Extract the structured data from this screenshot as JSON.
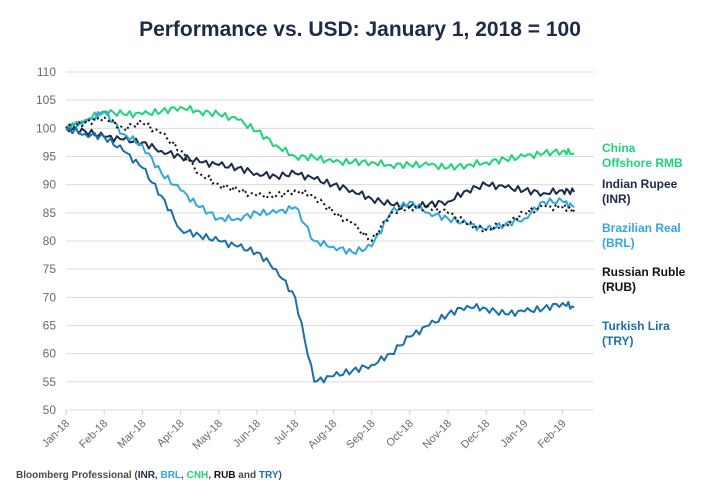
{
  "chart_data": {
    "type": "line",
    "title": "Performance vs. USD: January 1, 2018 = 100",
    "xlabel": "",
    "ylabel": "",
    "ylim": [
      50,
      110
    ],
    "yticks": [
      50,
      55,
      60,
      65,
      70,
      75,
      80,
      85,
      90,
      95,
      100,
      105,
      110
    ],
    "grid": true,
    "categories": [
      "Jan-18",
      "Feb-18",
      "Mar-18",
      "Apr-18",
      "May-18",
      "Jun-18",
      "Jul-18",
      "Aug-18",
      "Sep-18",
      "Oct-18",
      "Nov-18",
      "Dec-18",
      "Jan-19",
      "Feb-19"
    ],
    "x": [
      0,
      0.5,
      1,
      1.5,
      2,
      2.5,
      3,
      3.5,
      4,
      4.5,
      5,
      5.5,
      6,
      6.5,
      7,
      7.5,
      8,
      8.5,
      9,
      9.5,
      10,
      10.5,
      11,
      11.5,
      12,
      12.5,
      13,
      13.3
    ],
    "series": [
      {
        "name": "China Offshore RMB",
        "label": [
          "China",
          "Offshore RMB"
        ],
        "color": "#1fd37a",
        "dash": false,
        "values": [
          100,
          101.5,
          103,
          102.5,
          102.5,
          103,
          103.8,
          103,
          102.5,
          101.5,
          99.5,
          97,
          95,
          94.8,
          94,
          94,
          94,
          93.5,
          93.5,
          93.5,
          93,
          93.5,
          94,
          94.5,
          95,
          95.5,
          96,
          95.6
        ]
      },
      {
        "name": "Indian Rupee (INR)",
        "label": [
          "Indian Rupee",
          "(INR)"
        ],
        "color": "#1c2b47",
        "dash": false,
        "values": [
          100,
          99.5,
          98.5,
          98,
          97.5,
          96,
          95,
          94,
          93.5,
          93,
          92,
          91.5,
          92,
          91,
          90,
          89,
          87.5,
          86.5,
          86,
          86.5,
          87,
          89,
          90,
          89.5,
          89,
          88.5,
          89,
          88.7
        ]
      },
      {
        "name": "Brazilian Real (BRL)",
        "label": [
          "Brazilian Real",
          "(BRL)"
        ],
        "color": "#35a6dc",
        "dash": false,
        "values": [
          100,
          101,
          103,
          99,
          97,
          92,
          89,
          86,
          84,
          84,
          85,
          85,
          86,
          80,
          79,
          78,
          79,
          85,
          87,
          85,
          84,
          83,
          82,
          83,
          84,
          87,
          87,
          86
        ]
      },
      {
        "name": "Russian Ruble (RUB)",
        "label": [
          "Russian Ruble",
          "(RUB)"
        ],
        "color": "#111111",
        "dash": true,
        "values": [
          100,
          101,
          102,
          100,
          101,
          99,
          96,
          92,
          90,
          89,
          88,
          88,
          89,
          88,
          85,
          83,
          80,
          85,
          86,
          86,
          85,
          83,
          82,
          83,
          85,
          86,
          86,
          85.5
        ]
      },
      {
        "name": "Turkish Lira (TRY)",
        "label": [
          "Turkish Lira",
          "(TRY)"
        ],
        "color": "#1a6fad",
        "dash": false,
        "values": [
          100,
          99,
          98.5,
          96,
          93,
          88,
          82,
          81,
          80,
          79,
          78,
          75,
          70,
          55,
          56,
          57,
          58,
          60,
          63,
          65,
          67,
          68.5,
          68,
          67,
          67.5,
          68,
          69,
          68.2
        ]
      }
    ]
  },
  "source": {
    "prefix": "Bloomberg Professional (",
    "parts": [
      {
        "text": "INR",
        "color": "#1c2b47"
      },
      {
        "text": ", ",
        "color": "#4a4a4a"
      },
      {
        "text": "BRL",
        "color": "#35a6dc"
      },
      {
        "text": ", ",
        "color": "#4a4a4a"
      },
      {
        "text": "CNH",
        "color": "#1fd37a"
      },
      {
        "text": ", ",
        "color": "#4a4a4a"
      },
      {
        "text": "RUB",
        "color": "#111111"
      },
      {
        "text": " and ",
        "color": "#4a4a4a"
      },
      {
        "text": "TRY",
        "color": "#1a6fad"
      }
    ],
    "suffix": ")"
  }
}
